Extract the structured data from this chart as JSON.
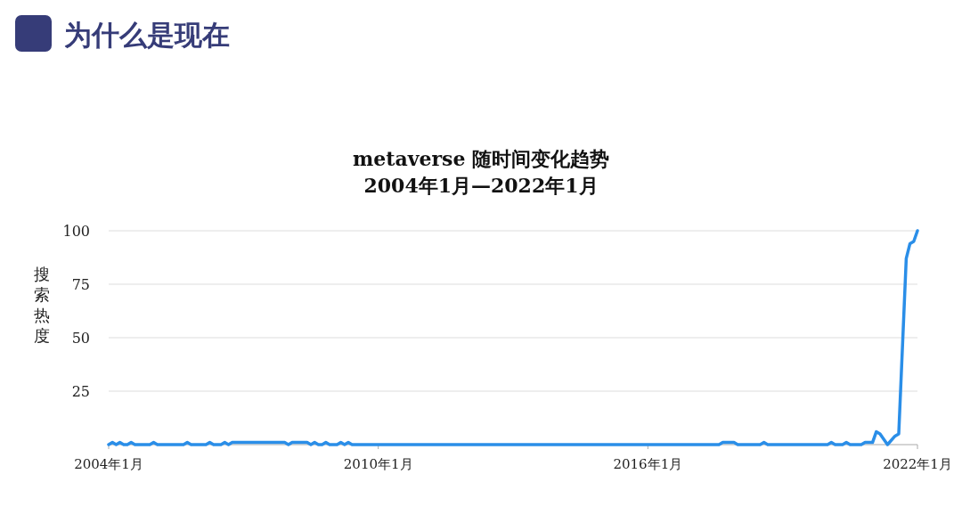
{
  "chart_data": {
    "type": "line",
    "title": "metaverse 随时间变化趋势",
    "subtitle": "2004年1月—2022年1月",
    "ylabel": "搜索热度",
    "annotations": [
      "为什么是现在"
    ],
    "xlim": [
      "2004-01",
      "2022-01"
    ],
    "xticks": [
      {
        "value": "2004-01",
        "label": "2004年1月"
      },
      {
        "value": "2010-01",
        "label": "2010年1月"
      },
      {
        "value": "2016-01",
        "label": "2016年1月"
      },
      {
        "value": "2022-01",
        "label": "2022年1月"
      }
    ],
    "ylim": [
      0,
      100
    ],
    "yticks": [
      25,
      50,
      75,
      100
    ],
    "grid": "y",
    "marker": "none",
    "line_style": "solid",
    "series": [
      {
        "color": "#2a8ee8",
        "x": [
          "2004-01",
          "2004-02",
          "2004-03",
          "2004-04",
          "2004-05",
          "2004-06",
          "2004-07",
          "2004-08",
          "2004-12",
          "2005-01",
          "2005-02",
          "2005-09",
          "2005-10",
          "2005-11",
          "2006-03",
          "2006-04",
          "2006-05",
          "2006-07",
          "2006-08",
          "2006-09",
          "2006-10",
          "2006-11",
          "2007-12",
          "2008-01",
          "2008-02",
          "2008-06",
          "2008-07",
          "2008-08",
          "2008-09",
          "2008-10",
          "2008-11",
          "2008-12",
          "2009-02",
          "2009-03",
          "2009-04",
          "2009-05",
          "2009-06",
          "2017-08",
          "2017-09",
          "2017-12",
          "2018-01",
          "2018-07",
          "2018-08",
          "2018-09",
          "2020-01",
          "2020-02",
          "2020-03",
          "2020-05",
          "2020-06",
          "2020-07",
          "2020-10",
          "2020-11",
          "2021-01",
          "2021-02",
          "2021-03",
          "2021-05",
          "2021-07",
          "2021-08",
          "2021-10",
          "2021-11",
          "2021-12",
          "2022-01"
        ],
        "values": [
          0,
          1,
          0,
          1,
          0,
          0,
          1,
          0,
          0,
          1,
          0,
          0,
          1,
          0,
          0,
          1,
          0,
          0,
          1,
          0,
          1,
          1,
          1,
          0,
          1,
          1,
          0,
          1,
          0,
          0,
          1,
          0,
          0,
          1,
          0,
          1,
          0,
          0,
          1,
          1,
          0,
          0,
          1,
          0,
          0,
          1,
          0,
          0,
          1,
          0,
          0,
          1,
          1,
          6,
          5,
          0,
          4,
          5,
          87,
          94,
          95,
          100
        ]
      }
    ]
  }
}
